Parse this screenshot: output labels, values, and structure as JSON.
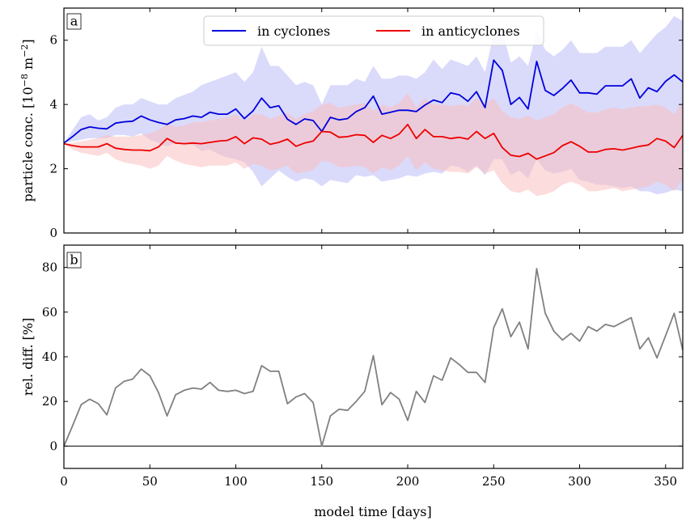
{
  "figure": {
    "panel_a_label": "a",
    "panel_b_label": "b"
  },
  "chart_data": [
    {
      "type": "line",
      "panel": "a",
      "xlabel": "",
      "ylabel_main": "particle conc. [10",
      "ylabel_exp": "−8",
      "ylabel_unit": " m",
      "ylabel_unit_exp": "−2",
      "ylabel_close": "]",
      "xlim": [
        0,
        360
      ],
      "ylim": [
        0,
        7
      ],
      "x_ticks": [
        0,
        50,
        100,
        150,
        200,
        250,
        300,
        350
      ],
      "y_ticks": [
        0,
        2,
        4,
        6
      ],
      "legend": {
        "placement": "top-center"
      },
      "x": [
        0,
        5,
        10,
        15,
        20,
        25,
        30,
        35,
        40,
        45,
        50,
        55,
        60,
        65,
        70,
        75,
        80,
        85,
        90,
        95,
        100,
        105,
        110,
        115,
        120,
        125,
        130,
        135,
        140,
        145,
        150,
        155,
        160,
        165,
        170,
        175,
        180,
        185,
        190,
        195,
        200,
        205,
        210,
        215,
        220,
        225,
        230,
        235,
        240,
        245,
        250,
        255,
        260,
        265,
        270,
        275,
        280,
        285,
        290,
        295,
        300,
        305,
        310,
        315,
        320,
        325,
        330,
        335,
        340,
        345,
        350,
        355,
        360
      ],
      "series": [
        {
          "name": "in cyclones",
          "color": "#0000dd",
          "band_color": "#bcbcf8",
          "mean": [
            2.8,
            3.0,
            3.22,
            3.3,
            3.26,
            3.24,
            3.42,
            3.46,
            3.48,
            3.64,
            3.52,
            3.44,
            3.38,
            3.52,
            3.56,
            3.64,
            3.6,
            3.76,
            3.7,
            3.7,
            3.86,
            3.56,
            3.8,
            4.2,
            3.9,
            3.96,
            3.54,
            3.38,
            3.55,
            3.5,
            3.16,
            3.6,
            3.52,
            3.56,
            3.78,
            3.9,
            4.26,
            3.7,
            3.76,
            3.82,
            3.82,
            3.78,
            3.98,
            4.14,
            4.06,
            4.36,
            4.3,
            4.1,
            4.4,
            3.9,
            5.38,
            5.06,
            4.0,
            4.22,
            3.86,
            5.34,
            4.44,
            4.28,
            4.5,
            4.76,
            4.36,
            4.36,
            4.32,
            4.58,
            4.58,
            4.58,
            4.8,
            4.2,
            4.52,
            4.4,
            4.72,
            4.92,
            4.7
          ],
          "upper": [
            2.8,
            3.2,
            3.6,
            3.7,
            3.5,
            3.6,
            3.9,
            4.0,
            4.0,
            4.2,
            4.1,
            4.0,
            4.0,
            4.2,
            4.3,
            4.4,
            4.6,
            4.7,
            4.8,
            4.9,
            5.0,
            4.7,
            5.0,
            5.8,
            5.2,
            5.2,
            4.9,
            4.6,
            4.7,
            4.6,
            4.0,
            4.6,
            4.6,
            4.6,
            4.8,
            4.7,
            5.2,
            4.8,
            4.8,
            4.9,
            4.9,
            4.8,
            5.0,
            5.4,
            5.1,
            5.4,
            5.3,
            5.2,
            5.5,
            5.0,
            6.2,
            6.3,
            5.3,
            5.5,
            5.2,
            6.3,
            5.7,
            5.5,
            5.7,
            6.0,
            5.6,
            5.6,
            5.6,
            5.8,
            5.8,
            5.8,
            6.0,
            5.6,
            5.9,
            6.2,
            6.4,
            6.75,
            6.6
          ],
          "lower": [
            2.8,
            2.85,
            2.9,
            2.95,
            2.95,
            2.95,
            3.05,
            3.05,
            3.0,
            3.1,
            2.9,
            2.8,
            2.7,
            2.8,
            2.75,
            2.75,
            2.55,
            2.6,
            2.45,
            2.35,
            2.3,
            2.2,
            1.9,
            1.45,
            1.7,
            1.95,
            1.75,
            1.6,
            1.7,
            1.65,
            1.45,
            1.65,
            1.6,
            1.55,
            1.8,
            1.75,
            1.8,
            1.6,
            1.65,
            1.7,
            1.8,
            1.75,
            1.85,
            1.9,
            1.85,
            2.1,
            2.05,
            1.9,
            2.1,
            1.8,
            2.3,
            2.3,
            1.8,
            1.95,
            1.7,
            2.3,
            1.95,
            1.85,
            1.9,
            2.0,
            1.65,
            1.6,
            1.5,
            1.5,
            1.45,
            1.4,
            1.45,
            1.3,
            1.3,
            1.2,
            1.25,
            1.35,
            1.3
          ]
        },
        {
          "name": "in anticyclones",
          "color": "#ee0000",
          "band_color": "#f9c0c0",
          "mean": [
            2.78,
            2.72,
            2.68,
            2.68,
            2.68,
            2.78,
            2.64,
            2.6,
            2.58,
            2.58,
            2.56,
            2.68,
            2.94,
            2.8,
            2.78,
            2.8,
            2.78,
            2.82,
            2.86,
            2.88,
            3.0,
            2.78,
            2.96,
            2.92,
            2.76,
            2.82,
            2.92,
            2.7,
            2.8,
            2.86,
            3.16,
            3.14,
            2.98,
            3.0,
            3.06,
            3.04,
            2.82,
            3.04,
            2.94,
            3.08,
            3.38,
            2.94,
            3.22,
            3.0,
            3.0,
            2.94,
            2.98,
            2.92,
            3.16,
            2.94,
            3.1,
            2.66,
            2.42,
            2.38,
            2.48,
            2.3,
            2.4,
            2.5,
            2.72,
            2.84,
            2.7,
            2.52,
            2.52,
            2.6,
            2.62,
            2.58,
            2.64,
            2.7,
            2.74,
            2.94,
            2.86,
            2.66,
            3.04
          ],
          "upper": [
            2.78,
            2.8,
            2.85,
            2.9,
            2.95,
            3.05,
            3.0,
            3.0,
            3.0,
            3.05,
            3.1,
            3.2,
            3.4,
            3.3,
            3.35,
            3.45,
            3.45,
            3.5,
            3.55,
            3.6,
            3.7,
            3.5,
            3.7,
            3.7,
            3.55,
            3.65,
            3.75,
            3.55,
            3.7,
            3.8,
            4.0,
            4.05,
            3.9,
            3.95,
            4.0,
            4.05,
            3.8,
            4.0,
            3.9,
            4.05,
            4.35,
            3.9,
            4.2,
            4.0,
            4.0,
            3.95,
            4.0,
            3.95,
            4.2,
            4.0,
            4.2,
            3.8,
            3.6,
            3.55,
            3.65,
            3.5,
            3.6,
            3.7,
            3.9,
            4.05,
            3.9,
            3.75,
            3.75,
            3.85,
            3.9,
            3.85,
            3.9,
            3.95,
            3.95,
            4.0,
            3.9,
            3.7,
            4.1
          ],
          "lower": [
            2.78,
            2.6,
            2.5,
            2.45,
            2.4,
            2.5,
            2.3,
            2.2,
            2.15,
            2.1,
            2.0,
            2.1,
            2.4,
            2.25,
            2.15,
            2.1,
            2.05,
            2.1,
            2.1,
            2.1,
            2.2,
            2.0,
            2.15,
            2.1,
            1.95,
            2.0,
            2.1,
            1.85,
            1.9,
            1.95,
            2.25,
            2.2,
            2.05,
            2.05,
            2.1,
            2.05,
            1.85,
            2.05,
            1.95,
            2.1,
            2.4,
            1.95,
            2.2,
            2.0,
            1.95,
            1.9,
            1.9,
            1.85,
            2.05,
            1.85,
            1.95,
            1.55,
            1.3,
            1.25,
            1.35,
            1.15,
            1.2,
            1.3,
            1.5,
            1.6,
            1.5,
            1.3,
            1.3,
            1.35,
            1.4,
            1.3,
            1.35,
            1.4,
            1.45,
            1.6,
            1.5,
            1.3,
            1.65
          ]
        }
      ]
    },
    {
      "type": "line",
      "panel": "b",
      "xlabel": "model time [days]",
      "ylabel": "rel. diff. [%]",
      "xlim": [
        0,
        360
      ],
      "ylim": [
        -10,
        90
      ],
      "x_ticks": [
        0,
        50,
        100,
        150,
        200,
        250,
        300,
        350
      ],
      "y_ticks": [
        0,
        20,
        40,
        60,
        80
      ],
      "reference_line": 0,
      "series": [
        {
          "name": "",
          "color": "#808080",
          "x": [
            0,
            5,
            10,
            15,
            20,
            25,
            30,
            35,
            40,
            45,
            50,
            55,
            60,
            65,
            70,
            75,
            80,
            85,
            90,
            95,
            100,
            105,
            110,
            115,
            120,
            125,
            130,
            135,
            140,
            145,
            150,
            155,
            160,
            165,
            170,
            175,
            180,
            185,
            190,
            195,
            200,
            205,
            210,
            215,
            220,
            225,
            230,
            235,
            240,
            245,
            250,
            255,
            260,
            265,
            270,
            275,
            280,
            285,
            290,
            295,
            300,
            305,
            310,
            315,
            320,
            325,
            330,
            335,
            340,
            345,
            350,
            355,
            360
          ],
          "values": [
            0,
            9,
            18.5,
            21,
            19,
            14,
            26,
            29,
            30,
            34.5,
            31.5,
            24,
            13.5,
            23,
            25,
            26,
            25.5,
            28.5,
            25,
            24.5,
            25,
            23.5,
            24.5,
            36,
            33.5,
            33.5,
            19,
            22,
            23.5,
            19.5,
            0,
            13.5,
            16.5,
            16,
            20,
            24.5,
            40.5,
            18.5,
            24,
            21,
            11.5,
            24.5,
            19.5,
            31.5,
            29.5,
            39.5,
            36.5,
            33,
            33,
            28.5,
            53,
            61.5,
            49,
            55.5,
            43.5,
            79.5,
            59.5,
            51.5,
            47.5,
            50.5,
            47,
            53.5,
            51.5,
            54.5,
            53.5,
            55.5,
            57.5,
            43.5,
            48.5,
            39.5,
            49.5,
            59.5,
            43
          ]
        }
      ]
    }
  ]
}
